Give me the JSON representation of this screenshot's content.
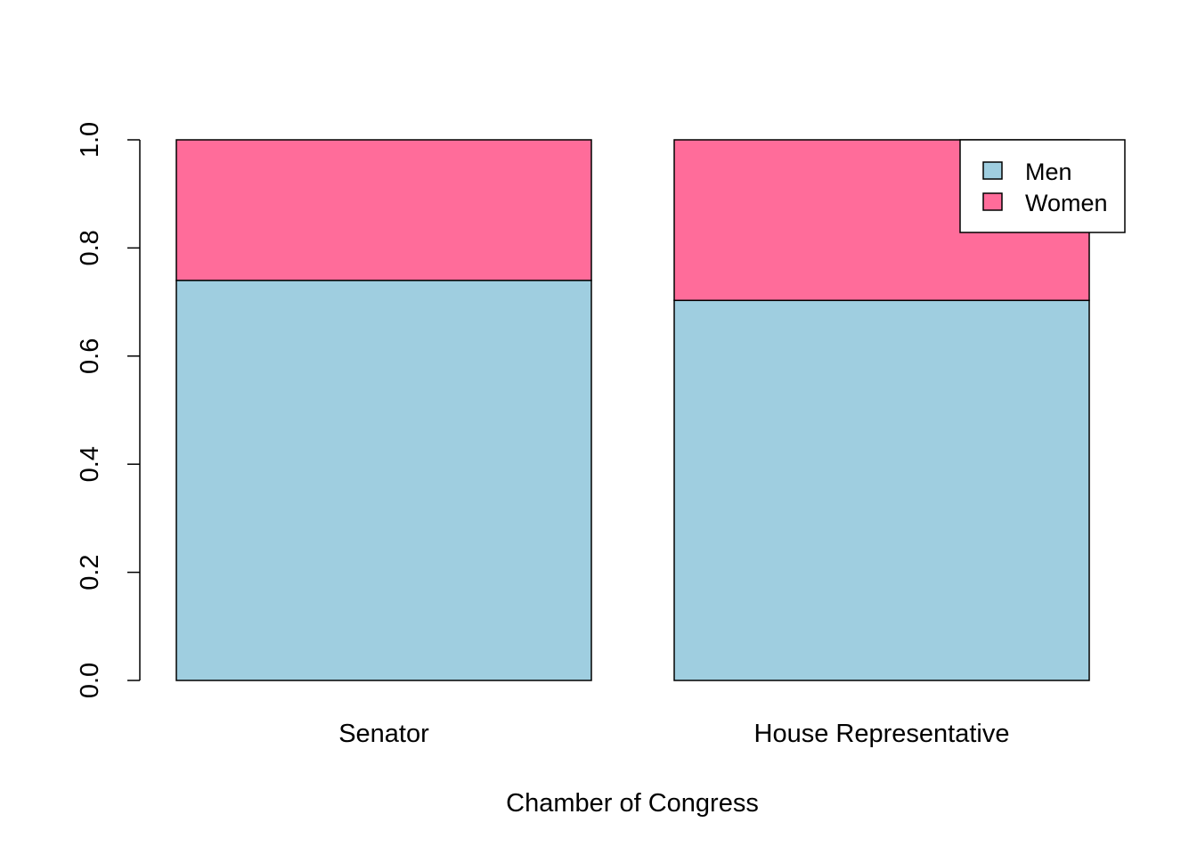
{
  "chart_data": {
    "type": "bar",
    "stacked": true,
    "categories": [
      "Senator",
      "House Representative"
    ],
    "series": [
      {
        "name": "Men",
        "values": [
          0.74,
          0.703
        ],
        "color": "#9FCEE0"
      },
      {
        "name": "Women",
        "values": [
          0.26,
          0.297
        ],
        "color": "#FF6C9A"
      }
    ],
    "title": "",
    "xlabel": "Chamber of Congress",
    "ylabel": "",
    "ylim": [
      0,
      1
    ],
    "yticks": [
      "0.0",
      "0.2",
      "0.4",
      "0.6",
      "0.8",
      "1.0"
    ],
    "grid": false,
    "legend_position": "top-right"
  }
}
